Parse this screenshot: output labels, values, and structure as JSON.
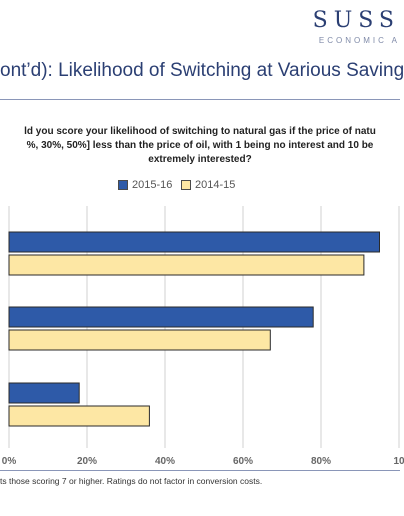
{
  "brand": {
    "name": "SUSS",
    "tagline": "ECONOMIC A"
  },
  "slide_title": "ont’d): Likelihood of Switching at Various Saving",
  "question": {
    "line1": "ld you score your likelihood of switching to natural gas if the price of natu",
    "line2": "%, 30%, 50%] less than the price of oil, with 1 being no interest and 10 be",
    "line3": "extremely interested?"
  },
  "footnote": "ts those scoring 7 or higher. Ratings do not factor in conversion costs.",
  "colors": {
    "series1": "#2e5aa8",
    "series2": "#fde7a4",
    "bar_stroke": "#2a2a2a",
    "grid": "#d0d0d0"
  },
  "chart_data": {
    "type": "bar",
    "orientation": "horizontal",
    "categories": [
      "",
      "",
      ""
    ],
    "series": [
      {
        "name": "2015-16",
        "values": [
          95,
          78,
          18
        ]
      },
      {
        "name": "2014-15",
        "values": [
          91,
          67,
          36
        ]
      }
    ],
    "xlim": [
      0,
      100
    ],
    "x_ticks": [
      "0%",
      "20%",
      "40%",
      "60%",
      "80%",
      "10"
    ],
    "grid": true,
    "legend_position": "top"
  }
}
